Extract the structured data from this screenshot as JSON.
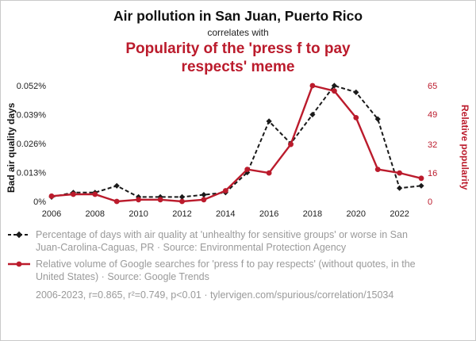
{
  "titles": {
    "main": "Air pollution in San Juan, Puerto Rico",
    "connector": "correlates with",
    "secondary": "Popularity of the 'press f to pay respects' meme"
  },
  "colors": {
    "accent_red": "#bb1b2c",
    "black_series": "#1a1a1a",
    "muted_text": "#9a9a9a"
  },
  "chart_data": {
    "type": "line",
    "x": [
      2006,
      2007,
      2008,
      2009,
      2010,
      2011,
      2012,
      2013,
      2014,
      2015,
      2016,
      2017,
      2018,
      2019,
      2020,
      2021,
      2022,
      2023
    ],
    "x_ticks": [
      2006,
      2008,
      2010,
      2012,
      2014,
      2016,
      2018,
      2020,
      2022
    ],
    "left_axis": {
      "label": "Bad air quality days",
      "ticks": [
        "0%",
        "0.013%",
        "0.026%",
        "0.039%",
        "0.052%"
      ],
      "tick_values": [
        0,
        0.013,
        0.026,
        0.039,
        0.052
      ],
      "max": 0.052
    },
    "right_axis": {
      "label": "Relative popularity",
      "ticks": [
        "0",
        "16",
        "32",
        "49",
        "65"
      ],
      "tick_values": [
        0,
        16,
        32,
        49,
        65
      ],
      "max": 65
    },
    "series": [
      {
        "name": "Bad air quality days (San Juan-Carolina-Caguas, PR)",
        "axis": "left",
        "color": "#1a1a1a",
        "dash": true,
        "marker": "diamond",
        "values": [
          0.002,
          0.004,
          0.004,
          0.007,
          0.002,
          0.002,
          0.002,
          0.003,
          0.004,
          0.013,
          0.036,
          0.026,
          0.039,
          0.052,
          0.049,
          0.037,
          0.006,
          0.007
        ]
      },
      {
        "name": "Google searches for 'press f to pay respects'",
        "axis": "right",
        "color": "#bb1b2c",
        "dash": false,
        "marker": "circle",
        "values": [
          3,
          4,
          4,
          0,
          1,
          1,
          0,
          1,
          6,
          18,
          16,
          32,
          65,
          62,
          47,
          18,
          16,
          13
        ]
      }
    ],
    "legend_position": "bottom",
    "grid": false
  },
  "legend": [
    {
      "marker": "black-dashed-diamond",
      "text": "Percentage of days with air quality at 'unhealthy for sensitive groups' or worse in San Juan-Carolina-Caguas, PR · Source: Environmental Protection Agency"
    },
    {
      "marker": "red-solid-circle",
      "text": "Relative volume of Google searches for 'press f to pay respects' (without quotes, in the United States) · Source: Google Trends"
    }
  ],
  "footer": {
    "text": "2006-2023, r=0.865, r²=0.749, p<0.01 · tylervigen.com/spurious/correlation/15034"
  }
}
